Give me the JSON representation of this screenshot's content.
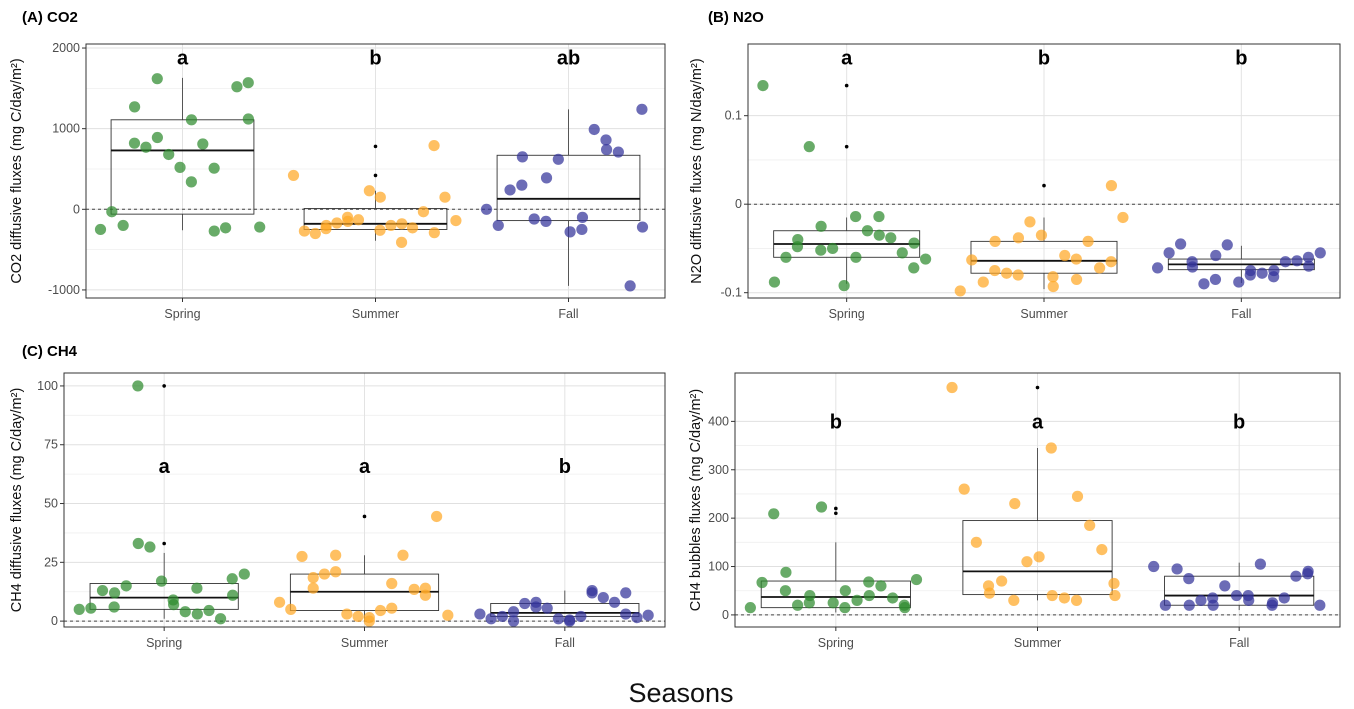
{
  "figure": {
    "xlabel": "Seasons"
  },
  "colors": {
    "Spring": "#2e8b2e",
    "Summer": "#ffa726",
    "Fall": "#33339a"
  },
  "chart_data": [
    {
      "type": "box",
      "title": "(A) CO2",
      "ylabel": "CO2 diffusive fluxes (mg C/day/m²)",
      "categories": [
        "Spring",
        "Summer",
        "Fall"
      ],
      "yticks": [
        -1000,
        0,
        1000,
        2000
      ],
      "ylim": [
        -1100,
        2050
      ],
      "zero_line": true,
      "letters": [
        "a",
        "b",
        "ab"
      ],
      "letter_y": 1880,
      "boxes": [
        {
          "q1": -60,
          "median": 730,
          "q3": 1110,
          "wlow": -260,
          "whigh": 1630,
          "outliers": []
        },
        {
          "q1": -250,
          "median": -180,
          "q3": 10,
          "wlow": -390,
          "whigh": 230,
          "outliers": [
            420,
            780
          ]
        },
        {
          "q1": -140,
          "median": 130,
          "q3": 670,
          "wlow": -950,
          "whigh": 1240,
          "outliers": []
        }
      ],
      "points": [
        [
          -250,
          -30,
          -200,
          820,
          1270,
          770,
          1620,
          890,
          680,
          520,
          340,
          1110,
          810,
          510,
          -270,
          -230,
          1520,
          1570,
          1120,
          -220
        ],
        [
          420,
          -270,
          -300,
          -200,
          -240,
          -170,
          -150,
          -100,
          -130,
          230,
          150,
          -260,
          -200,
          -180,
          -410,
          -230,
          -30,
          -290,
          790,
          150,
          -140
        ],
        [
          0,
          -200,
          240,
          300,
          650,
          -120,
          -150,
          390,
          620,
          -280,
          -250,
          -100,
          990,
          860,
          740,
          710,
          -950,
          1240,
          -220
        ]
      ]
    },
    {
      "type": "box",
      "title": "(B) N2O",
      "ylabel": "N2O diffusive fluxes (mg N/day/m²)",
      "categories": [
        "Spring",
        "Summer",
        "Fall"
      ],
      "yticks": [
        -0.1,
        0.0,
        0.1
      ],
      "ylim": [
        -0.106,
        0.181
      ],
      "zero_line": true,
      "letters": [
        "a",
        "b",
        "b"
      ],
      "letter_y": 0.166,
      "boxes": [
        {
          "q1": -0.06,
          "median": -0.045,
          "q3": -0.03,
          "wlow": -0.09,
          "whigh": -0.015,
          "outliers": [
            0.065,
            0.134
          ]
        },
        {
          "q1": -0.078,
          "median": -0.064,
          "q3": -0.042,
          "wlow": -0.096,
          "whigh": -0.015,
          "outliers": [
            0.021
          ]
        },
        {
          "q1": -0.074,
          "median": -0.068,
          "q3": -0.062,
          "wlow": -0.089,
          "whigh": -0.047,
          "outliers": []
        }
      ],
      "points": [
        [
          0.134,
          -0.088,
          -0.06,
          -0.048,
          -0.04,
          0.065,
          -0.052,
          -0.025,
          -0.05,
          -0.092,
          -0.014,
          -0.06,
          -0.03,
          -0.014,
          -0.035,
          -0.038,
          -0.055,
          -0.072,
          -0.044,
          -0.062
        ],
        [
          -0.098,
          -0.063,
          -0.088,
          -0.075,
          -0.042,
          -0.078,
          -0.08,
          -0.038,
          -0.02,
          -0.035,
          -0.082,
          -0.093,
          -0.058,
          -0.062,
          -0.085,
          -0.042,
          -0.072,
          -0.065,
          0.021,
          -0.015
        ],
        [
          -0.072,
          -0.055,
          -0.045,
          -0.065,
          -0.071,
          -0.09,
          -0.085,
          -0.058,
          -0.046,
          -0.088,
          -0.08,
          -0.075,
          -0.078,
          -0.082,
          -0.075,
          -0.065,
          -0.064,
          -0.06,
          -0.07,
          -0.055
        ]
      ]
    },
    {
      "type": "box",
      "title": "(C) CH4",
      "ylabel": "CH4 diffusive fluxes (mg C/day/m²)",
      "categories": [
        "Spring",
        "Summer",
        "Fall"
      ],
      "yticks": [
        0,
        25,
        50,
        75,
        100
      ],
      "ylim": [
        -2.5,
        105.5
      ],
      "zero_line": true,
      "letters": [
        "a",
        "a",
        "b"
      ],
      "letter_y": 66,
      "boxes": [
        {
          "q1": 5,
          "median": 10,
          "q3": 16,
          "wlow": 1,
          "whigh": 29,
          "outliers": [
            33,
            100
          ]
        },
        {
          "q1": 4.5,
          "median": 12.5,
          "q3": 20,
          "wlow": 0,
          "whigh": 28,
          "outliers": [
            44.5
          ]
        },
        {
          "q1": 2,
          "median": 3.5,
          "q3": 7.5,
          "wlow": 0,
          "whigh": 13,
          "outliers": []
        }
      ],
      "points": [
        [
          5,
          5.5,
          13,
          6,
          12,
          15,
          100,
          33,
          31.5,
          17,
          9,
          7,
          4,
          14,
          3,
          4.5,
          1,
          18,
          11,
          20
        ],
        [
          8,
          5,
          27.5,
          14,
          18.5,
          20,
          28,
          21,
          3,
          2,
          1.5,
          0,
          4.5,
          16,
          5.5,
          28,
          13.5,
          14,
          11,
          44.5,
          2.5
        ],
        [
          3,
          1,
          2,
          4,
          0,
          7.5,
          6,
          8,
          5.5,
          1,
          0.5,
          0,
          2,
          12,
          13,
          10,
          8,
          3,
          12,
          1.5,
          2.5
        ]
      ]
    },
    {
      "type": "box",
      "title": "",
      "ylabel": "CH4 bubbles fluxes (mg C/day/m²)",
      "categories": [
        "Spring",
        "Summer",
        "Fall"
      ],
      "yticks": [
        0,
        100,
        200,
        300,
        400
      ],
      "ylim": [
        -25,
        500
      ],
      "zero_line": true,
      "letters": [
        "b",
        "a",
        "b"
      ],
      "letter_y": 400,
      "boxes": [
        {
          "q1": 15,
          "median": 37,
          "q3": 70,
          "wlow": 5,
          "whigh": 150,
          "outliers": [
            210,
            220
          ]
        },
        {
          "q1": 42,
          "median": 90,
          "q3": 195,
          "wlow": 30,
          "whigh": 345,
          "outliers": [
            470
          ]
        },
        {
          "q1": 20,
          "median": 40,
          "q3": 80,
          "wlow": 10,
          "whigh": 108,
          "outliers": []
        }
      ],
      "points": [
        [
          15,
          67,
          209,
          50,
          88,
          20,
          25,
          40,
          223,
          25,
          15,
          50,
          30,
          68,
          40,
          60,
          35,
          20,
          15,
          73
        ],
        [
          470,
          260,
          150,
          60,
          45,
          70,
          30,
          230,
          110,
          120,
          345,
          40,
          35,
          30,
          245,
          185,
          135,
          65,
          40
        ],
        [
          100,
          20,
          95,
          75,
          20,
          30,
          35,
          20,
          60,
          40,
          40,
          30,
          105,
          20,
          25,
          35,
          80,
          85,
          90,
          20
        ]
      ]
    }
  ]
}
